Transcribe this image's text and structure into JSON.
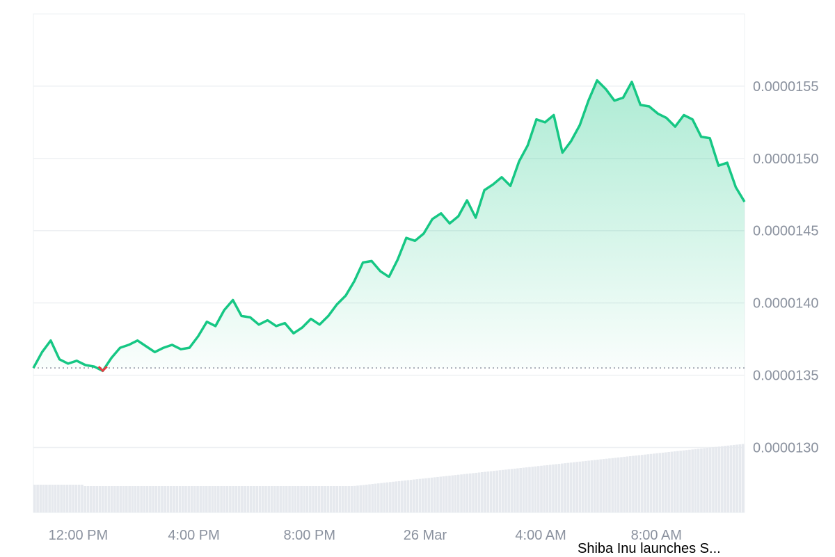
{
  "caption": "Shiba Inu launches S...",
  "chart_data": {
    "type": "area",
    "colors": {
      "up": "#16c784",
      "down": "#ea3943",
      "grid": "#eef0f3",
      "tick": "#8a919e",
      "volume": "#e6e9ee"
    },
    "x_ticks": [
      "12:00 PM",
      "4:00 PM",
      "8:00 PM",
      "26 Mar",
      "4:00 AM",
      "8:00 AM"
    ],
    "y_ticks": [
      "0.0000130",
      "0.0000135",
      "0.0000140",
      "0.0000145",
      "0.0000150",
      "0.0000155"
    ],
    "ylim": [
      1.255e-05,
      1.6e-05
    ],
    "grid": true,
    "x_hours_label": "hours",
    "baseline": 1.355e-05,
    "series": [
      {
        "x": [
          10.0,
          10.3,
          10.6,
          10.9,
          11.2,
          11.5,
          11.8,
          12.1,
          12.4,
          12.7,
          13.0,
          13.3,
          13.6,
          13.9,
          14.2,
          14.5,
          14.8,
          15.1,
          15.4,
          15.7,
          16.0,
          16.3,
          16.6,
          16.9,
          17.2,
          17.5,
          17.8,
          18.1,
          18.4,
          18.7,
          19.0,
          19.3,
          19.6,
          19.9,
          20.2,
          20.5,
          20.8,
          21.1,
          21.4,
          21.7,
          22.0,
          22.3,
          22.6,
          22.9,
          23.2,
          23.5,
          23.8,
          24.1,
          24.4,
          24.7,
          25.0,
          25.3,
          25.6,
          25.9,
          26.2,
          26.5,
          26.8,
          27.1,
          27.4,
          27.7,
          28.0,
          28.3,
          28.6,
          28.9,
          29.2,
          29.5,
          29.8,
          30.1,
          30.4,
          30.7,
          31.0,
          31.3,
          31.6,
          31.9,
          32.2,
          32.5,
          32.8,
          33.1,
          33.4,
          33.7,
          34.0,
          34.3,
          34.6
        ],
        "y": [
          1.355e-05,
          1.366e-05,
          1.374e-05,
          1.361e-05,
          1.358e-05,
          1.36e-05,
          1.357e-05,
          1.356e-05,
          1.353e-05,
          1.362e-05,
          1.369e-05,
          1.371e-05,
          1.374e-05,
          1.37e-05,
          1.366e-05,
          1.369e-05,
          1.371e-05,
          1.368e-05,
          1.369e-05,
          1.377e-05,
          1.387e-05,
          1.384e-05,
          1.395e-05,
          1.402e-05,
          1.391e-05,
          1.39e-05,
          1.385e-05,
          1.388e-05,
          1.384e-05,
          1.386e-05,
          1.379e-05,
          1.383e-05,
          1.389e-05,
          1.385e-05,
          1.391e-05,
          1.399e-05,
          1.405e-05,
          1.415e-05,
          1.428e-05,
          1.429e-05,
          1.422e-05,
          1.418e-05,
          1.43e-05,
          1.445e-05,
          1.443e-05,
          1.448e-05,
          1.458e-05,
          1.462e-05,
          1.455e-05,
          1.46e-05,
          1.471e-05,
          1.459e-05,
          1.478e-05,
          1.482e-05,
          1.487e-05,
          1.481e-05,
          1.498e-05,
          1.509e-05,
          1.527e-05,
          1.525e-05,
          1.53e-05,
          1.504e-05,
          1.512e-05,
          1.523e-05,
          1.54e-05,
          1.554e-05,
          1.548e-05,
          1.54e-05,
          1.542e-05,
          1.553e-05,
          1.537e-05,
          1.536e-05,
          1.531e-05,
          1.528e-05,
          1.522e-05,
          1.53e-05,
          1.527e-05,
          1.515e-05,
          1.514e-05,
          1.495e-05,
          1.497e-05,
          1.48e-05,
          1.47e-05
        ]
      }
    ]
  }
}
